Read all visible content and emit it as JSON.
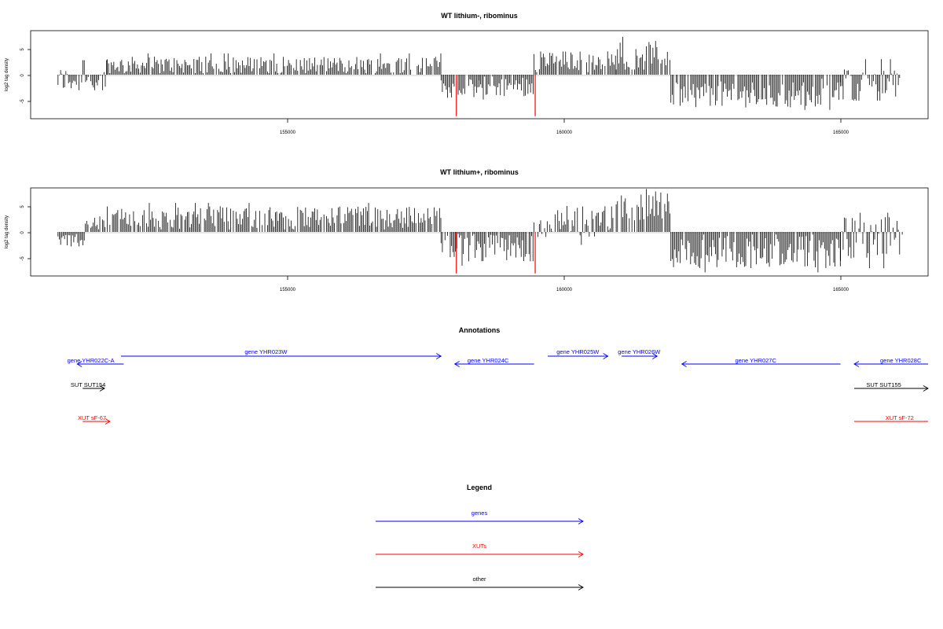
{
  "chart_data": [
    {
      "type": "bar",
      "title": "WT lithium-, ribominus",
      "ylabel": "log2 tag density",
      "xlim": [
        150000,
        166400
      ],
      "ylim": [
        -8.5,
        8.5
      ],
      "xticks": [
        "155000",
        "160000",
        "165000"
      ],
      "yticks": [
        "5",
        "0",
        "-5"
      ],
      "segments": [
        {
          "from": 150500,
          "to": 151400,
          "mean": -1.0,
          "max": 2.8,
          "min": -3.0
        },
        {
          "from": 151400,
          "to": 157500,
          "mean": 1.9,
          "max": 4.1,
          "min": 0.3
        },
        {
          "from": 157500,
          "to": 158200,
          "mean": -2.7,
          "max": -0.3,
          "min": -4.6
        },
        {
          "from": 158200,
          "to": 159200,
          "mean": -2.2,
          "max": -0.2,
          "min": -4.8
        },
        {
          "from": 159200,
          "to": 160700,
          "mean": 2.7,
          "max": 5.0,
          "min": 0.5
        },
        {
          "from": 160700,
          "to": 161700,
          "mean": 4.0,
          "max": 7.3,
          "min": 1.0
        },
        {
          "from": 161700,
          "to": 164800,
          "mean": -3.8,
          "max": -0.8,
          "min": -6.8
        },
        {
          "from": 164800,
          "to": 165950,
          "mean": -2.2,
          "max": 3.0,
          "min": -5.0
        }
      ],
      "highlight": [
        {
          "x": 157780,
          "y": -8.0
        },
        {
          "x": 159220,
          "y": -8.0
        }
      ]
    },
    {
      "type": "bar",
      "title": "WT lithium+, ribominus",
      "ylabel": "log2 tag density",
      "xlim": [
        150000,
        166400
      ],
      "ylim": [
        -8.5,
        8.5
      ],
      "xticks": [
        "155000",
        "160000",
        "165000"
      ],
      "yticks": [
        "5",
        "0",
        "-5"
      ],
      "segments": [
        {
          "from": 150500,
          "to": 151000,
          "mean": -1.6,
          "max": -0.4,
          "min": -3.3
        },
        {
          "from": 151000,
          "to": 151400,
          "mean": 1.6,
          "max": 3.0,
          "min": 0.3
        },
        {
          "from": 151400,
          "to": 157500,
          "mean": 2.8,
          "max": 5.6,
          "min": 0.5
        },
        {
          "from": 157500,
          "to": 159200,
          "mean": -3.1,
          "max": -0.4,
          "min": -6.5
        },
        {
          "from": 159200,
          "to": 160700,
          "mean": 2.2,
          "max": 5.0,
          "min": -2.5
        },
        {
          "from": 160700,
          "to": 161700,
          "mean": 5.0,
          "max": 8.3,
          "min": 1.5
        },
        {
          "from": 161700,
          "to": 164800,
          "mean": -3.9,
          "max": -0.5,
          "min": -7.8
        },
        {
          "from": 164800,
          "to": 165950,
          "mean": -1.5,
          "max": 3.7,
          "min": -7.0
        }
      ],
      "highlight": [
        {
          "x": 157780,
          "y": -8.0
        },
        {
          "x": 159220,
          "y": -8.0
        }
      ]
    }
  ],
  "annotations": {
    "title": "Annotations",
    "items": [
      {
        "label": "gene YHR022C-A",
        "start": 150850,
        "end": 151700,
        "dir": "left",
        "row": 2,
        "color": "#0000ff",
        "label_x": 151100
      },
      {
        "label": "gene YHR023W",
        "start": 151650,
        "end": 157500,
        "dir": "right",
        "row": 1,
        "color": "#0000ff",
        "label_x": 154300
      },
      {
        "label": "gene YHR024C",
        "start": 157750,
        "end": 159200,
        "dir": "left",
        "row": 2,
        "color": "#0000ff",
        "label_x": 158360
      },
      {
        "label": "gene YHR025W",
        "start": 159450,
        "end": 160550,
        "dir": "right",
        "row": 1,
        "color": "#0000ff",
        "label_x": 160000
      },
      {
        "label": "gene YHR026W",
        "start": 160800,
        "end": 161450,
        "dir": "right",
        "row": 1,
        "color": "#0000ff",
        "label_x": 161120
      },
      {
        "label": "gene YHR027C",
        "start": 161900,
        "end": 164800,
        "dir": "left",
        "row": 2,
        "color": "#0000ff",
        "label_x": 163250
      },
      {
        "label": "gene YHR028C",
        "start": 165050,
        "end": 166400,
        "dir": "left",
        "row": 2,
        "color": "#0000ff",
        "label_x": 165900
      },
      {
        "label": "SUT SUT154",
        "start": 150950,
        "end": 151350,
        "dir": "right",
        "row": 3,
        "color": "#000000",
        "label_x": 151050
      },
      {
        "label": "SUT SUT155",
        "start": 165050,
        "end": 166400,
        "dir": "right",
        "row": 3,
        "color": "#000000",
        "label_x": 165590
      },
      {
        "label": "XUT sF-67",
        "start": 150950,
        "end": 151450,
        "dir": "right",
        "row": 4,
        "color": "#ff0000",
        "label_x": 151120
      },
      {
        "label": "XUT sF-72",
        "start": 165050,
        "end": 166400,
        "dir": "none",
        "row": 4,
        "color": "#ff0000",
        "label_x": 165880
      }
    ]
  },
  "legend": {
    "title": "Legend",
    "items": [
      {
        "label": "genes",
        "color": "#0000ff"
      },
      {
        "label": "XUTs",
        "color": "#ff0000"
      },
      {
        "label": "other",
        "color": "#000000"
      }
    ]
  },
  "colors": {
    "signal": "#000000",
    "highlight": "#ff0000",
    "gene": "#0000ff",
    "xut": "#ff0000",
    "other": "#000000",
    "baseline": "#bdbdbd"
  }
}
